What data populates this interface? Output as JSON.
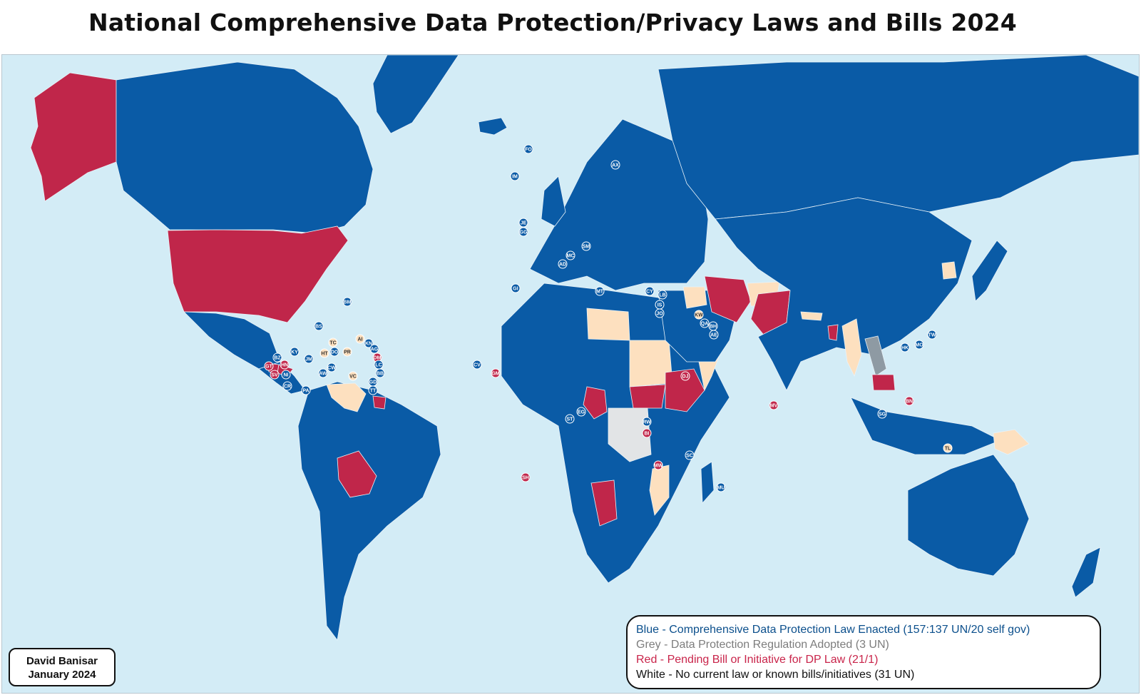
{
  "title": "National Comprehensive Data Protection/Privacy Laws and Bills 2024",
  "credit": {
    "author": "David Banisar",
    "date": "January 2024"
  },
  "legend": [
    {
      "key": "blue",
      "text": "Blue - Comprehensive Data Protection Law Enacted (157:137 UN/20 self gov)"
    },
    {
      "key": "grey",
      "text": "Grey - Data Protection Regulation Adopted (3 UN)"
    },
    {
      "key": "red",
      "text": "Red -  Pending Bill or Initiative for DP Law (21/1)"
    },
    {
      "key": "white",
      "text": "White - No current law or known bills/initiatives (31 UN)"
    }
  ],
  "colors": {
    "ocean": "#d3ecf6",
    "enacted": "#0a5ba6",
    "regulation": "#8e9aa3",
    "pending": "#c0264a",
    "none": "#fde0bf",
    "nodata": "#e2e4e6"
  },
  "map_labels": [
    {
      "code": "FO",
      "status": "enacted"
    },
    {
      "code": "IM",
      "status": "enacted"
    },
    {
      "code": "JE",
      "status": "enacted"
    },
    {
      "code": "GG",
      "status": "enacted"
    },
    {
      "code": "AX",
      "status": "enacted"
    },
    {
      "code": "MC",
      "status": "enacted"
    },
    {
      "code": "AD",
      "status": "enacted"
    },
    {
      "code": "SM",
      "status": "enacted"
    },
    {
      "code": "GI",
      "status": "enacted"
    },
    {
      "code": "MT",
      "status": "enacted"
    },
    {
      "code": "CY",
      "status": "enacted"
    },
    {
      "code": "LB",
      "status": "enacted"
    },
    {
      "code": "IS",
      "status": "enacted"
    },
    {
      "code": "JO",
      "status": "enacted"
    },
    {
      "code": "KW",
      "status": "none"
    },
    {
      "code": "QA",
      "status": "enacted"
    },
    {
      "code": "BH",
      "status": "enacted"
    },
    {
      "code": "AE",
      "status": "enacted"
    },
    {
      "code": "DJ",
      "status": "pending"
    },
    {
      "code": "BM",
      "status": "enacted"
    },
    {
      "code": "BS",
      "status": "enacted"
    },
    {
      "code": "KY",
      "status": "enacted"
    },
    {
      "code": "JM",
      "status": "enacted"
    },
    {
      "code": "BZ",
      "status": "enacted"
    },
    {
      "code": "HN",
      "status": "pending"
    },
    {
      "code": "GT",
      "status": "pending"
    },
    {
      "code": "SV",
      "status": "pending"
    },
    {
      "code": "NI",
      "status": "enacted"
    },
    {
      "code": "CR",
      "status": "enacted"
    },
    {
      "code": "PA",
      "status": "enacted"
    },
    {
      "code": "TC",
      "status": "none"
    },
    {
      "code": "HT",
      "status": "none"
    },
    {
      "code": "DO",
      "status": "enacted"
    },
    {
      "code": "PR",
      "status": "none"
    },
    {
      "code": "AI",
      "status": "none"
    },
    {
      "code": "KN",
      "status": "enacted"
    },
    {
      "code": "AG",
      "status": "enacted"
    },
    {
      "code": "DM",
      "status": "pending"
    },
    {
      "code": "LC",
      "status": "enacted"
    },
    {
      "code": "VC",
      "status": "none"
    },
    {
      "code": "BB",
      "status": "enacted"
    },
    {
      "code": "GD",
      "status": "enacted"
    },
    {
      "code": "TT",
      "status": "enacted"
    },
    {
      "code": "AW",
      "status": "enacted"
    },
    {
      "code": "CW",
      "status": "enacted"
    },
    {
      "code": "CV",
      "status": "enacted"
    },
    {
      "code": "GM",
      "status": "pending"
    },
    {
      "code": "ST",
      "status": "enacted"
    },
    {
      "code": "EG",
      "status": "enacted"
    },
    {
      "code": "RW",
      "status": "enacted"
    },
    {
      "code": "BI",
      "status": "pending"
    },
    {
      "code": "MW",
      "status": "pending"
    },
    {
      "code": "SH",
      "status": "pending"
    },
    {
      "code": "MV",
      "status": "pending"
    },
    {
      "code": "SC",
      "status": "enacted"
    },
    {
      "code": "MU",
      "status": "enacted"
    },
    {
      "code": "HK",
      "status": "enacted"
    },
    {
      "code": "MO",
      "status": "enacted"
    },
    {
      "code": "TW",
      "status": "enacted"
    },
    {
      "code": "SG",
      "status": "enacted"
    },
    {
      "code": "BN",
      "status": "pending"
    },
    {
      "code": "TL",
      "status": "none"
    }
  ]
}
